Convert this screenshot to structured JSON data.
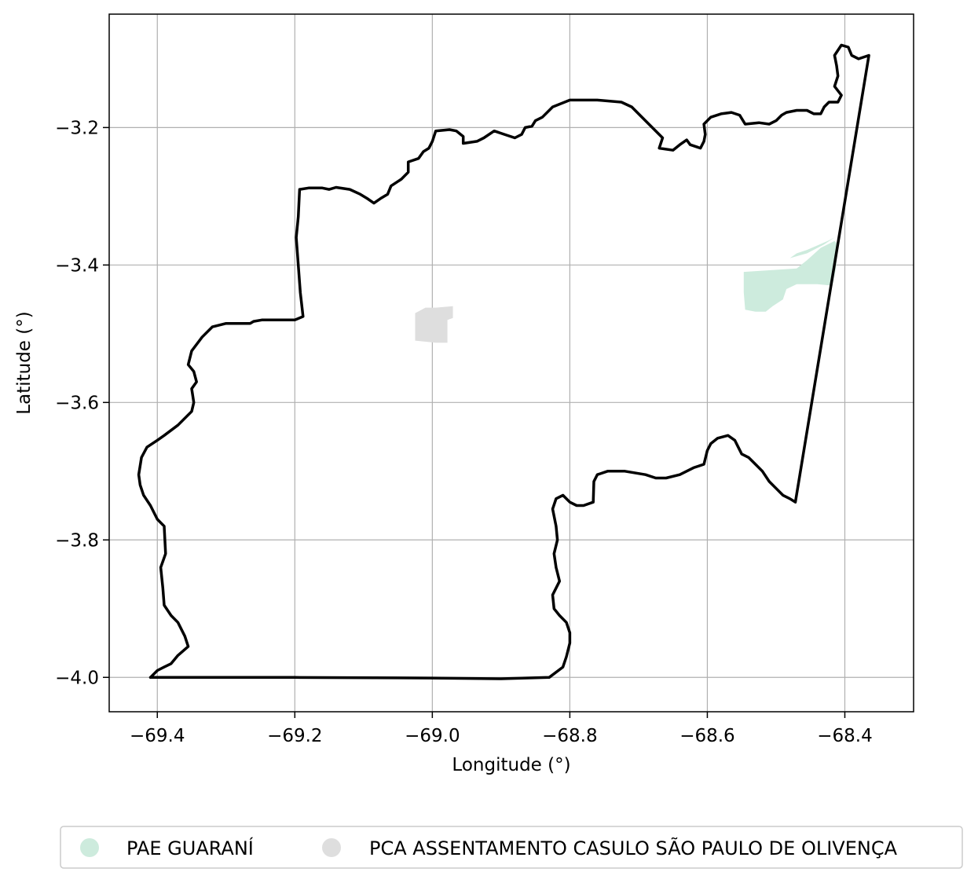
{
  "chart_data": {
    "type": "map",
    "xlabel": "Longitude (°)",
    "ylabel": "Latitude (°)",
    "xlim": [
      -69.47,
      -68.3
    ],
    "ylim": [
      -4.05,
      -3.035
    ],
    "grid": true,
    "x_ticks": [
      {
        "value": -69.4,
        "label": "−69.4"
      },
      {
        "value": -69.2,
        "label": "−69.2"
      },
      {
        "value": -69.0,
        "label": "−69.0"
      },
      {
        "value": -68.8,
        "label": "−68.8"
      },
      {
        "value": -68.6,
        "label": "−68.6"
      },
      {
        "value": -68.4,
        "label": "−68.4"
      }
    ],
    "y_ticks": [
      {
        "value": -3.2,
        "label": "−3.2"
      },
      {
        "value": -3.4,
        "label": "−3.4"
      },
      {
        "value": -3.6,
        "label": "−3.6"
      },
      {
        "value": -3.8,
        "label": "−3.8"
      },
      {
        "value": -4.0,
        "label": "−4.0"
      }
    ],
    "legend_placement": "bottom-center",
    "legend": [
      {
        "name": "PAE GUARANÍ",
        "color": "#cdebdd"
      },
      {
        "name": "PCA ASSENTAMENTO CASULO SÃO PAULO DE OLIVENÇA",
        "color": "#dedede"
      }
    ],
    "boundary": {
      "color": "#000000",
      "coords": [
        [
          -69.41,
          -4.0
        ],
        [
          -69.4,
          -3.99
        ],
        [
          -69.39,
          -3.985
        ],
        [
          -69.38,
          -3.98
        ],
        [
          -69.37,
          -3.968
        ],
        [
          -69.355,
          -3.955
        ],
        [
          -69.36,
          -3.94
        ],
        [
          -69.37,
          -3.92
        ],
        [
          -69.38,
          -3.91
        ],
        [
          -69.39,
          -3.895
        ],
        [
          -69.392,
          -3.87
        ],
        [
          -69.395,
          -3.84
        ],
        [
          -69.388,
          -3.82
        ],
        [
          -69.39,
          -3.78
        ],
        [
          -69.4,
          -3.77
        ],
        [
          -69.41,
          -3.75
        ],
        [
          -69.42,
          -3.735
        ],
        [
          -69.425,
          -3.72
        ],
        [
          -69.427,
          -3.705
        ],
        [
          -69.423,
          -3.68
        ],
        [
          -69.415,
          -3.665
        ],
        [
          -69.4,
          -3.655
        ],
        [
          -69.39,
          -3.648
        ],
        [
          -69.37,
          -3.633
        ],
        [
          -69.35,
          -3.613
        ],
        [
          -69.347,
          -3.6
        ],
        [
          -69.35,
          -3.58
        ],
        [
          -69.343,
          -3.57
        ],
        [
          -69.347,
          -3.555
        ],
        [
          -69.355,
          -3.545
        ],
        [
          -69.35,
          -3.525
        ],
        [
          -69.335,
          -3.505
        ],
        [
          -69.32,
          -3.49
        ],
        [
          -69.3,
          -3.485
        ],
        [
          -69.265,
          -3.485
        ],
        [
          -69.26,
          -3.482
        ],
        [
          -69.248,
          -3.48
        ],
        [
          -69.2,
          -3.48
        ],
        [
          -69.188,
          -3.475
        ],
        [
          -69.192,
          -3.44
        ],
        [
          -69.195,
          -3.4
        ],
        [
          -69.198,
          -3.36
        ],
        [
          -69.195,
          -3.33
        ],
        [
          -69.193,
          -3.29
        ],
        [
          -69.18,
          -3.288
        ],
        [
          -69.16,
          -3.288
        ],
        [
          -69.15,
          -3.29
        ],
        [
          -69.14,
          -3.287
        ],
        [
          -69.12,
          -3.29
        ],
        [
          -69.105,
          -3.297
        ],
        [
          -69.095,
          -3.303
        ],
        [
          -69.085,
          -3.31
        ],
        [
          -69.075,
          -3.303
        ],
        [
          -69.065,
          -3.297
        ],
        [
          -69.06,
          -3.285
        ],
        [
          -69.045,
          -3.275
        ],
        [
          -69.035,
          -3.265
        ],
        [
          -69.035,
          -3.25
        ],
        [
          -69.02,
          -3.245
        ],
        [
          -69.013,
          -3.235
        ],
        [
          -69.005,
          -3.23
        ],
        [
          -69.0,
          -3.22
        ],
        [
          -68.995,
          -3.205
        ],
        [
          -68.975,
          -3.203
        ],
        [
          -68.965,
          -3.205
        ],
        [
          -68.955,
          -3.213
        ],
        [
          -68.955,
          -3.223
        ],
        [
          -68.935,
          -3.22
        ],
        [
          -68.925,
          -3.215
        ],
        [
          -68.91,
          -3.205
        ],
        [
          -68.895,
          -3.21
        ],
        [
          -68.88,
          -3.215
        ],
        [
          -68.87,
          -3.21
        ],
        [
          -68.865,
          -3.2
        ],
        [
          -68.855,
          -3.198
        ],
        [
          -68.85,
          -3.19
        ],
        [
          -68.84,
          -3.185
        ],
        [
          -68.825,
          -3.17
        ],
        [
          -68.8,
          -3.16
        ],
        [
          -68.76,
          -3.16
        ],
        [
          -68.725,
          -3.163
        ],
        [
          -68.71,
          -3.17
        ],
        [
          -68.7,
          -3.18
        ],
        [
          -68.685,
          -3.195
        ],
        [
          -68.665,
          -3.215
        ],
        [
          -68.67,
          -3.23
        ],
        [
          -68.65,
          -3.233
        ],
        [
          -68.64,
          -3.225
        ],
        [
          -68.63,
          -3.218
        ],
        [
          -68.625,
          -3.225
        ],
        [
          -68.61,
          -3.23
        ],
        [
          -68.605,
          -3.22
        ],
        [
          -68.603,
          -3.21
        ],
        [
          -68.605,
          -3.195
        ],
        [
          -68.595,
          -3.185
        ],
        [
          -68.58,
          -3.18
        ],
        [
          -68.565,
          -3.178
        ],
        [
          -68.553,
          -3.182
        ],
        [
          -68.545,
          -3.195
        ],
        [
          -68.525,
          -3.193
        ],
        [
          -68.51,
          -3.195
        ],
        [
          -68.5,
          -3.19
        ],
        [
          -68.492,
          -3.182
        ],
        [
          -68.485,
          -3.178
        ],
        [
          -68.47,
          -3.175
        ],
        [
          -68.455,
          -3.175
        ],
        [
          -68.445,
          -3.18
        ],
        [
          -68.435,
          -3.18
        ],
        [
          -68.43,
          -3.17
        ],
        [
          -68.423,
          -3.163
        ],
        [
          -68.41,
          -3.163
        ],
        [
          -68.405,
          -3.153
        ],
        [
          -68.415,
          -3.14
        ],
        [
          -68.41,
          -3.125
        ],
        [
          -68.412,
          -3.11
        ],
        [
          -68.415,
          -3.095
        ],
        [
          -68.405,
          -3.08
        ],
        [
          -68.395,
          -3.083
        ],
        [
          -68.39,
          -3.095
        ],
        [
          -68.38,
          -3.1
        ],
        [
          -68.365,
          -3.095
        ],
        [
          -68.472,
          -3.745
        ],
        [
          -68.48,
          -3.74
        ],
        [
          -68.49,
          -3.735
        ],
        [
          -68.5,
          -3.725
        ],
        [
          -68.51,
          -3.715
        ],
        [
          -68.52,
          -3.7
        ],
        [
          -68.53,
          -3.69
        ],
        [
          -68.54,
          -3.68
        ],
        [
          -68.55,
          -3.675
        ],
        [
          -68.555,
          -3.665
        ],
        [
          -68.56,
          -3.655
        ],
        [
          -68.57,
          -3.648
        ],
        [
          -68.585,
          -3.652
        ],
        [
          -68.595,
          -3.66
        ],
        [
          -68.6,
          -3.67
        ],
        [
          -68.605,
          -3.69
        ],
        [
          -68.62,
          -3.695
        ],
        [
          -68.64,
          -3.705
        ],
        [
          -68.66,
          -3.71
        ],
        [
          -68.675,
          -3.71
        ],
        [
          -68.69,
          -3.705
        ],
        [
          -68.72,
          -3.7
        ],
        [
          -68.745,
          -3.7
        ],
        [
          -68.76,
          -3.705
        ],
        [
          -68.765,
          -3.715
        ],
        [
          -68.766,
          -3.745
        ],
        [
          -68.78,
          -3.75
        ],
        [
          -68.79,
          -3.75
        ],
        [
          -68.8,
          -3.745
        ],
        [
          -68.81,
          -3.735
        ],
        [
          -68.82,
          -3.74
        ],
        [
          -68.825,
          -3.755
        ],
        [
          -68.82,
          -3.78
        ],
        [
          -68.818,
          -3.8
        ],
        [
          -68.823,
          -3.82
        ],
        [
          -68.82,
          -3.84
        ],
        [
          -68.815,
          -3.86
        ],
        [
          -68.825,
          -3.88
        ],
        [
          -68.823,
          -3.9
        ],
        [
          -68.815,
          -3.91
        ],
        [
          -68.805,
          -3.92
        ],
        [
          -68.8,
          -3.935
        ],
        [
          -68.8,
          -3.95
        ],
        [
          -68.805,
          -3.97
        ],
        [
          -68.81,
          -3.985
        ],
        [
          -68.83,
          -4.0
        ],
        [
          -68.9,
          -4.002
        ],
        [
          -69.0,
          -4.001
        ],
        [
          -69.2,
          -4.0
        ],
        [
          -69.41,
          -4.0
        ]
      ]
    },
    "areas": [
      {
        "name": "PAE GUARANÍ",
        "color": "#cdebdd",
        "coords": [
          [
            -68.547,
            -3.41
          ],
          [
            -68.47,
            -3.405
          ],
          [
            -68.455,
            -3.393
          ],
          [
            -68.435,
            -3.375
          ],
          [
            -68.415,
            -3.365
          ],
          [
            -68.41,
            -3.37
          ],
          [
            -68.413,
            -3.405
          ],
          [
            -68.418,
            -3.43
          ],
          [
            -68.44,
            -3.428
          ],
          [
            -68.47,
            -3.428
          ],
          [
            -68.485,
            -3.435
          ],
          [
            -68.49,
            -3.45
          ],
          [
            -68.505,
            -3.46
          ],
          [
            -68.515,
            -3.468
          ],
          [
            -68.53,
            -3.468
          ],
          [
            -68.545,
            -3.465
          ],
          [
            -68.547,
            -3.44
          ]
        ]
      },
      {
        "name": "PAE GUARANÍ",
        "color": "#cdebdd",
        "coords": [
          [
            -68.48,
            -3.39
          ],
          [
            -68.455,
            -3.383
          ],
          [
            -68.43,
            -3.37
          ],
          [
            -68.415,
            -3.36
          ],
          [
            -68.425,
            -3.365
          ],
          [
            -68.455,
            -3.378
          ],
          [
            -68.47,
            -3.383
          ]
        ]
      },
      {
        "name": "PCA ASSENTAMENTO CASULO SÃO PAULO DE OLIVENÇA",
        "color": "#dedede",
        "coords": [
          [
            -69.025,
            -3.47
          ],
          [
            -69.01,
            -3.462
          ],
          [
            -68.995,
            -3.462
          ],
          [
            -68.97,
            -3.46
          ],
          [
            -68.97,
            -3.477
          ],
          [
            -68.978,
            -3.48
          ],
          [
            -68.978,
            -3.513
          ],
          [
            -68.995,
            -3.513
          ],
          [
            -69.025,
            -3.51
          ]
        ]
      }
    ]
  }
}
